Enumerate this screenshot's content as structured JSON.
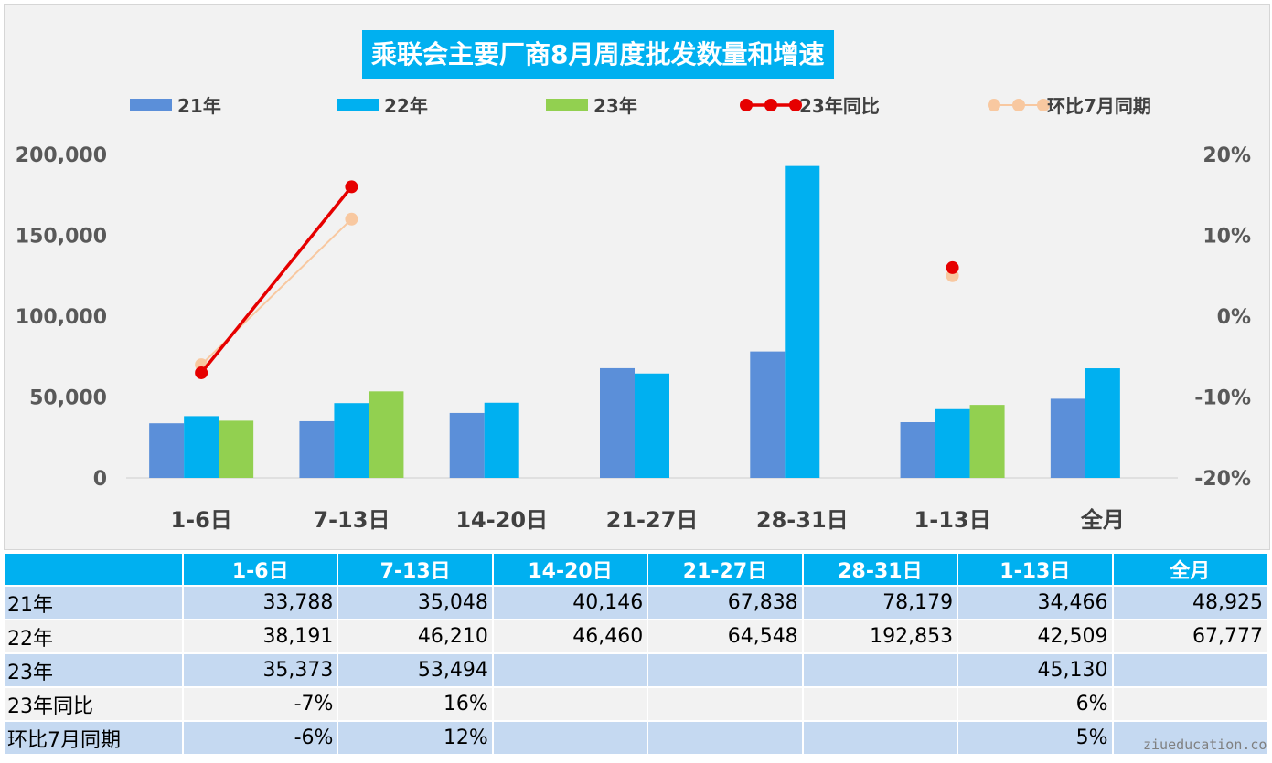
{
  "chart_data": {
    "type": "bar",
    "title": "乘联会主要厂商8月周度批发数量和增速",
    "categories": [
      "1-6日",
      "7-13日",
      "14-20日",
      "21-27日",
      "28-31日",
      "1-13日",
      "全月"
    ],
    "series": [
      {
        "name": "21年",
        "kind": "bar",
        "color": "#5b8fd9",
        "values": [
          33788,
          35048,
          40146,
          67838,
          78179,
          34466,
          48925
        ]
      },
      {
        "name": "22年",
        "kind": "bar",
        "color": "#00b0f0",
        "values": [
          38191,
          46210,
          46460,
          64548,
          192853,
          42509,
          67777
        ]
      },
      {
        "name": "23年",
        "kind": "bar",
        "color": "#92d050",
        "values": [
          35373,
          53494,
          null,
          null,
          null,
          45130,
          null
        ]
      },
      {
        "name": "23年同比",
        "kind": "line",
        "axis": "right",
        "color": "#e60000",
        "values": [
          -0.07,
          0.16,
          null,
          null,
          null,
          0.06,
          null
        ]
      },
      {
        "name": "环比7月同期",
        "kind": "line",
        "axis": "right",
        "color": "#f8c8a0",
        "values": [
          -0.06,
          0.12,
          null,
          null,
          null,
          0.05,
          null
        ]
      }
    ],
    "y_left": {
      "range": [
        0,
        200000
      ],
      "ticks": [
        "0",
        "50,000",
        "100,000",
        "150,000",
        "200,000"
      ],
      "tick_values": [
        0,
        50000,
        100000,
        150000,
        200000
      ]
    },
    "y_right": {
      "range": [
        -0.2,
        0.2
      ],
      "ticks": [
        "-20%",
        "-10%",
        "0%",
        "10%",
        "20%"
      ],
      "tick_values": [
        -0.2,
        -0.1,
        0,
        0.1,
        0.2
      ]
    },
    "legend_position": "top",
    "grid": false
  },
  "table": {
    "headers": [
      "",
      "1-6日",
      "7-13日",
      "14-20日",
      "21-27日",
      "28-31日",
      "1-13日",
      "全月"
    ],
    "rows": [
      [
        "21年",
        "33,788",
        "35,048",
        "40,146",
        "67,838",
        "78,179",
        "34,466",
        "48,925"
      ],
      [
        "22年",
        "38,191",
        "46,210",
        "46,460",
        "64,548",
        "192,853",
        "42,509",
        "67,777"
      ],
      [
        "23年",
        "35,373",
        "53,494",
        "",
        "",
        "",
        "45,130",
        ""
      ],
      [
        "23年同比",
        "-7%",
        "16%",
        "",
        "",
        "",
        "6%",
        ""
      ],
      [
        "环比7月同期",
        "-6%",
        "12%",
        "",
        "",
        "",
        "5%",
        ""
      ]
    ]
  },
  "watermark": "ziueducation.co"
}
